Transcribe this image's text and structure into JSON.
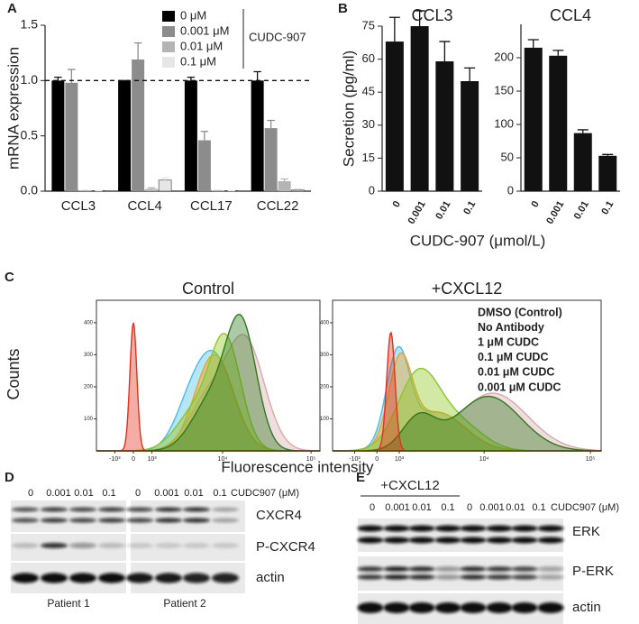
{
  "panel_labels": [
    "A",
    "B",
    "C",
    "D",
    "E"
  ],
  "chart_data": [
    {
      "type": "bar",
      "ylabel": "mRNA expression",
      "categories": [
        "CCL3",
        "CCL4",
        "CCL17",
        "CCL22"
      ],
      "series": [
        {
          "name": "0 μM",
          "color": "#000000",
          "values": [
            1,
            1,
            1,
            1
          ],
          "errors": [
            0.03,
            0,
            0.03,
            0.08
          ]
        },
        {
          "name": "0.001 μM",
          "color": "#8c8c8c",
          "values": [
            0.98,
            1.19,
            0.46,
            0.57
          ],
          "errors": [
            0.12,
            0.15,
            0.08,
            0.07
          ]
        },
        {
          "name": "0.01 μM",
          "color": "#b4b4b4",
          "values": [
            0.005,
            0.02,
            0.005,
            0.09
          ],
          "errors": [
            0,
            0.01,
            0,
            0.02
          ]
        },
        {
          "name": "0.1 μM",
          "color": "#e6e6e6",
          "values": [
            0.005,
            0.1,
            0.005,
            0.01
          ],
          "errors": [
            0,
            0.02,
            0,
            0.01
          ]
        }
      ],
      "legend_title": "CUDC-907",
      "hline": 1.0,
      "ylim": [
        0,
        1.5
      ],
      "yticks": [
        {
          "value": 0,
          "label": "0.0"
        },
        0.5,
        {
          "value": 1,
          "label": "1.0"
        },
        1.5
      ]
    },
    {
      "type": "bar",
      "title": "CCL3",
      "ylabel": "Secretion (pg/ml)",
      "categories": [
        "0",
        "0.001",
        "0.01",
        "0.1"
      ],
      "values": [
        68,
        75,
        59,
        50
      ],
      "errors": [
        11,
        7,
        9,
        6
      ],
      "color": "#111111",
      "ylim": [
        0,
        75
      ],
      "yticks": [
        0,
        15,
        30,
        45,
        60,
        75
      ]
    },
    {
      "type": "bar",
      "title": "CCL4",
      "categories": [
        "0",
        "0.001",
        "0.01",
        "0.1"
      ],
      "values": [
        215,
        203,
        87,
        53
      ],
      "errors": [
        12,
        8,
        5,
        2
      ],
      "color": "#111111",
      "ylim": [
        0,
        250
      ],
      "yticks": [
        0,
        50,
        100,
        150,
        200
      ]
    }
  ],
  "panel_b_xlabel": "CUDC-907 (μmol/L)",
  "flow": {
    "ylabel": "Counts",
    "xlabel": "Fluorescence intensity",
    "xscale": "biexponential",
    "panels": [
      "Control",
      "+CXCL12"
    ],
    "ylim": [
      0,
      470
    ],
    "yticks": [
      100,
      200,
      300,
      400
    ],
    "xlim": [
      -2220,
      126000
    ],
    "xticks": [
      {
        "value": -1000,
        "label": "-10³"
      },
      0,
      {
        "value": 1000,
        "label": "10³"
      },
      {
        "value": 10000,
        "label": "10⁴"
      },
      {
        "value": 100000,
        "label": "10⁵"
      }
    ],
    "series": [
      {
        "name": "DMSO (Control)",
        "color": "#d9a9a9"
      },
      {
        "name": "No Antibody",
        "color": "#e0321e"
      },
      {
        "name": "1 μM CUDC",
        "color": "#48bde6"
      },
      {
        "name": "0.1 μM CUDC",
        "color": "#f2a01e"
      },
      {
        "name": "0.01 μM CUDC",
        "color": "#8cc81e"
      },
      {
        "name": "0.001 μM CUDC",
        "color": "#2e7a1e"
      }
    ]
  },
  "blot_d": {
    "lanes": [
      "0",
      "0.001",
      "0.01",
      "0.1",
      "0",
      "0.001",
      "0.01",
      "0.1"
    ],
    "unit": "CUDC907 (μM)",
    "rows": [
      "CXCR4",
      "P-CXCR4",
      "actin"
    ],
    "groups": [
      "Patient 1",
      "Patient 2"
    ]
  },
  "blot_e": {
    "treatment": "+CXCL12",
    "lanes": [
      "0",
      "0.001",
      "0.01",
      "0.1",
      "0",
      "0.001",
      "0.01",
      "0.1"
    ],
    "unit": "CUDC907 (μM)",
    "rows": [
      "ERK",
      "P-ERK",
      "actin"
    ]
  }
}
